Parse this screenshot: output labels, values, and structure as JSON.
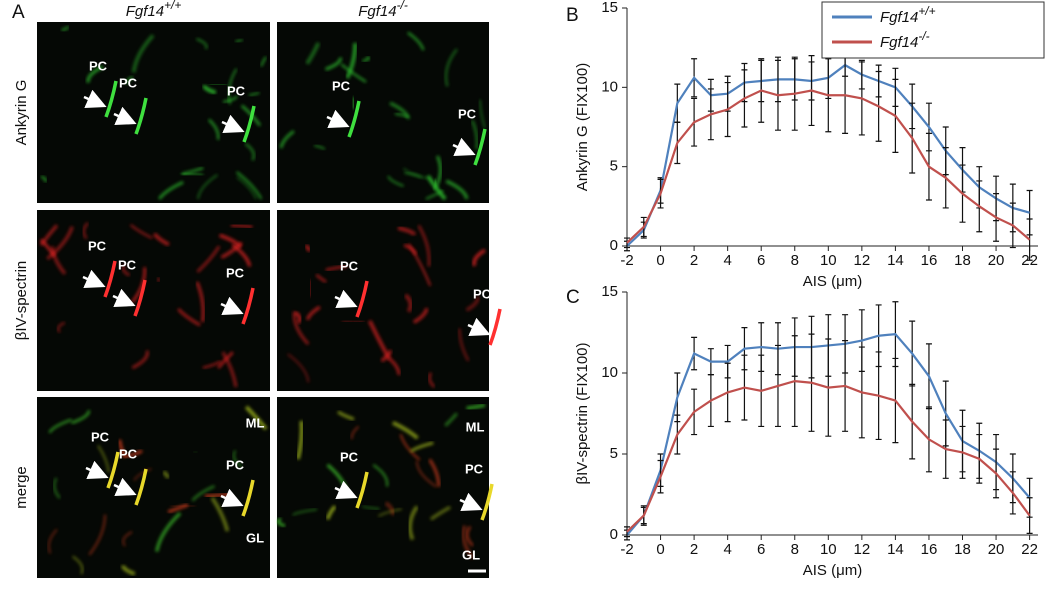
{
  "panel_labels": [
    "A",
    "B",
    "C"
  ],
  "micrographs": {
    "columns": [
      {
        "gene": "Fgf14",
        "genotype": "+/+"
      },
      {
        "gene": "Fgf14",
        "genotype": "-/-"
      }
    ],
    "rows": [
      "Ankyrin G",
      "βIV-spectrin",
      "merge"
    ],
    "panels": [
      {
        "labels": [
          "PC",
          "PC",
          "PC"
        ]
      },
      {
        "labels": [
          "PC",
          "PC"
        ]
      },
      {
        "labels": [
          "PC",
          "PC",
          "PC"
        ]
      },
      {
        "labels": [
          "PC",
          "PC"
        ]
      },
      {
        "labels": [
          "ML",
          "PC",
          "PC",
          "PC",
          "GL"
        ]
      },
      {
        "labels": [
          "ML",
          "PC",
          "PC",
          "GL"
        ]
      }
    ]
  },
  "chart_data": [
    {
      "type": "line",
      "y_label": "Ankyrin G  (FIX100)",
      "x_label": "AIS (μm)",
      "legend": "upper right",
      "x": [
        -2,
        -1,
        0,
        1,
        2,
        3,
        4,
        5,
        6,
        7,
        8,
        9,
        10,
        11,
        12,
        13,
        14,
        15,
        16,
        17,
        18,
        19,
        20,
        21,
        22
      ],
      "xlim": [
        -2,
        22.5
      ],
      "xticks": [
        -2,
        0,
        2,
        4,
        6,
        8,
        10,
        12,
        14,
        16,
        18,
        20,
        22
      ],
      "ylim": [
        0,
        15
      ],
      "yticks": [
        0,
        5,
        10,
        15
      ],
      "series": [
        {
          "name": "Fgf14",
          "genotype": "+/+",
          "color": "#4f81bd",
          "values": [
            0,
            1,
            3.5,
            9,
            10.6,
            9.5,
            9.6,
            10.3,
            10.4,
            10.5,
            10.5,
            10.4,
            10.6,
            11.4,
            10.8,
            10.4,
            10,
            8.8,
            7.5,
            6,
            4.8,
            3.7,
            3,
            2.4,
            2.1
          ],
          "errors": [
            0.3,
            0.5,
            0.8,
            1.2,
            1.2,
            1,
            1.1,
            1.2,
            1.3,
            1.4,
            1.3,
            1.2,
            1.3,
            0.7,
            0.9,
            1,
            1.2,
            1.4,
            1.5,
            1.5,
            1.4,
            1.3,
            1.4,
            1.5,
            1.4
          ]
        },
        {
          "name": "Fgf14",
          "genotype": "-/-",
          "color": "#c0504d",
          "values": [
            0.2,
            1.2,
            3.3,
            6.5,
            7.8,
            8.3,
            8.6,
            9.3,
            9.8,
            9.5,
            9.6,
            9.8,
            9.5,
            9.5,
            9.3,
            8.8,
            8.2,
            6.8,
            5,
            4.3,
            3.3,
            2.5,
            1.8,
            1.3,
            0.4
          ],
          "errors": [
            0.3,
            0.6,
            0.9,
            1.3,
            1.5,
            1.6,
            1.7,
            1.8,
            2,
            2.2,
            2.3,
            2.2,
            2.3,
            2.4,
            2.3,
            2.2,
            2.3,
            2.2,
            2.1,
            1.9,
            1.8,
            1.6,
            1.5,
            1.4,
            1.3
          ]
        }
      ]
    },
    {
      "type": "line",
      "y_label": "βIV-spectrin  (FIX100)",
      "x_label": "AIS (μm)",
      "x": [
        -2,
        -1,
        0,
        1,
        2,
        3,
        4,
        5,
        6,
        7,
        8,
        9,
        10,
        11,
        12,
        13,
        14,
        15,
        16,
        17,
        18,
        19,
        20,
        21,
        22
      ],
      "xlim": [
        -2,
        22.5
      ],
      "xticks": [
        -2,
        0,
        2,
        4,
        6,
        8,
        10,
        12,
        14,
        16,
        18,
        20,
        22
      ],
      "ylim": [
        0,
        15
      ],
      "yticks": [
        0,
        5,
        10,
        15
      ],
      "series": [
        {
          "name": "Fgf14",
          "genotype": "+/+",
          "color": "#4f81bd",
          "values": [
            0,
            1.2,
            4,
            8.5,
            11.2,
            10.7,
            10.7,
            11.5,
            11.6,
            11.5,
            11.6,
            11.6,
            11.7,
            11.8,
            12,
            12.3,
            12.4,
            11.2,
            9.8,
            7.5,
            5.8,
            5.2,
            4.5,
            3.5,
            2.3
          ],
          "errors": [
            0.3,
            0.5,
            1,
            1.5,
            1,
            0.8,
            1,
            1.3,
            1.5,
            1.6,
            1.8,
            1.9,
            1.9,
            1.8,
            1.9,
            1.9,
            2,
            2,
            2,
            2,
            1.9,
            1.7,
            1.7,
            1.5,
            1.2
          ]
        },
        {
          "name": "Fgf14",
          "genotype": "-/-",
          "color": "#c0504d",
          "values": [
            0.2,
            1.2,
            3.6,
            6.2,
            7.6,
            8.3,
            8.8,
            9.1,
            8.9,
            9.2,
            9.5,
            9.4,
            9.1,
            9.2,
            8.8,
            8.6,
            8.3,
            7,
            5.9,
            5.3,
            5.1,
            4.7,
            3.8,
            2.6,
            1.2
          ],
          "errors": [
            0.3,
            0.6,
            1,
            1.2,
            1.4,
            1.6,
            1.8,
            2,
            2.2,
            2.5,
            2.8,
            3,
            3,
            2.8,
            2.8,
            2.7,
            2.6,
            2.3,
            2,
            1.8,
            1.6,
            1.5,
            1.5,
            1.3,
            1.1
          ]
        }
      ]
    }
  ]
}
